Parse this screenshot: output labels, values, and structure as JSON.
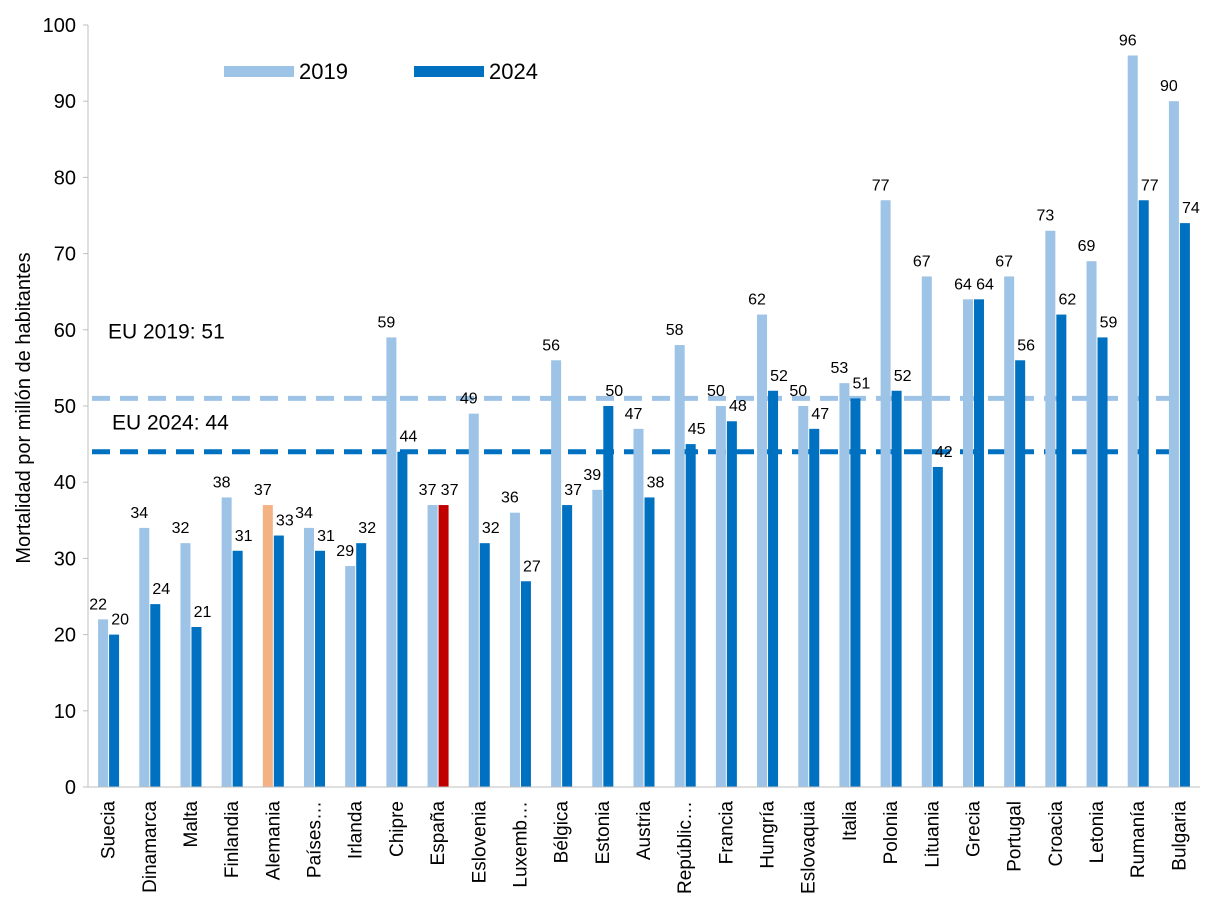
{
  "chart_data": {
    "type": "bar",
    "title": "",
    "xlabel": "",
    "ylabel": "Mortalidad por millón de habitantes",
    "ylim": [
      0,
      100
    ],
    "yticks": [
      0,
      10,
      20,
      30,
      40,
      50,
      60,
      70,
      80,
      90,
      100
    ],
    "grid": false,
    "legend_position": "top-left",
    "categories": [
      "Suecia",
      "Dinamarca",
      "Malta",
      "Finlandia",
      "Alemania",
      "Países…",
      "Irlanda",
      "Chipre",
      "España",
      "Eslovenia",
      "Luxemb…",
      "Bélgica",
      "Estonia",
      "Austria",
      "Repúblic…",
      "Francia",
      "Hungría",
      "Eslovaquia",
      "Italia",
      "Polonia",
      "Lituania",
      "Grecia",
      "Portugal",
      "Croacia",
      "Letonia",
      "Rumanía",
      "Bulgaria"
    ],
    "series": [
      {
        "name": "2019",
        "color": "#9DC3E6",
        "values": [
          22,
          34,
          32,
          38,
          37,
          34,
          29,
          59,
          37,
          49,
          36,
          56,
          39,
          47,
          58,
          50,
          62,
          50,
          53,
          77,
          67,
          64,
          67,
          73,
          69,
          96,
          90
        ]
      },
      {
        "name": "2024",
        "color": "#0070C0",
        "values": [
          20,
          24,
          21,
          31,
          33,
          31,
          32,
          44,
          37,
          32,
          27,
          37,
          50,
          38,
          45,
          48,
          52,
          47,
          51,
          52,
          42,
          64,
          56,
          62,
          59,
          77,
          74
        ]
      }
    ],
    "highlights": [
      {
        "category": "Alemania",
        "series": "2019",
        "color": "#F4B183"
      },
      {
        "category": "España",
        "series": "2024",
        "color": "#C00000"
      }
    ],
    "reference_lines": [
      {
        "label": "EU 2019: 51",
        "value": 51,
        "color": "#9DC3E6"
      },
      {
        "label": "EU 2024: 44",
        "value": 44,
        "color": "#0070C0"
      }
    ]
  }
}
